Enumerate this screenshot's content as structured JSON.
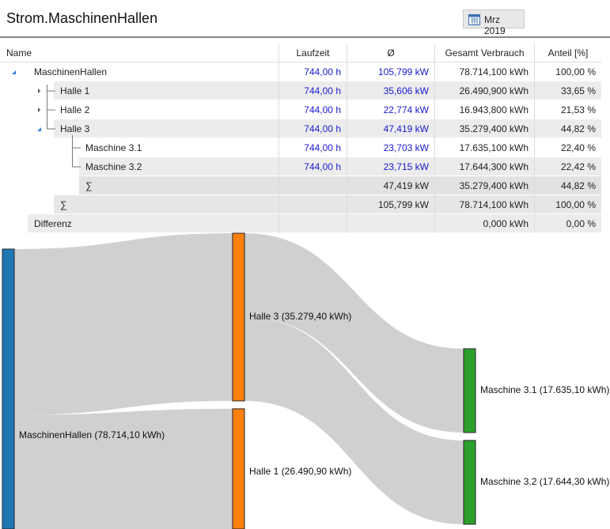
{
  "header": {
    "title": "Strom.MaschinenHallen",
    "period": "Mrz 2019"
  },
  "table": {
    "columns": [
      "Name",
      "Laufzeit",
      "Ø",
      "Gesamt Verbrauch",
      "Anteil [%]"
    ],
    "rows": [
      [
        "MaschinenHallen",
        "744,00 h",
        "105,799 kW",
        "78.714,100 kWh",
        "100,00 %"
      ],
      [
        "Halle 1",
        "744,00 h",
        "35,606 kW",
        "26.490,900 kWh",
        "33,65 %"
      ],
      [
        "Halle 2",
        "744,00 h",
        "22,774 kW",
        "16.943,800 kWh",
        "21,53 %"
      ],
      [
        "Halle 3",
        "744,00 h",
        "47,419 kW",
        "35.279,400 kWh",
        "44,82 %"
      ],
      [
        "Maschine 3.1",
        "744,00 h",
        "23,703 kW",
        "17.635,100 kWh",
        "22,40 %"
      ],
      [
        "Maschine 3.2",
        "744,00 h",
        "23,715 kW",
        "17.644,300 kWh",
        "22,42 %"
      ],
      [
        "∑",
        null,
        "47,419 kW",
        "35.279,400 kWh",
        "44,82 %"
      ],
      [
        "∑",
        null,
        "105,799 kW",
        "78.714,100 kWh",
        "100,00 %"
      ],
      [
        "Differenz",
        null,
        null,
        "0,000 kWh",
        "0,00 %"
      ]
    ]
  },
  "sankey": {
    "nodes": [
      {
        "label": "MaschinenHallen (78.714,10 kWh)"
      },
      {
        "label": "Halle 3 (35.279,40 kWh)"
      },
      {
        "label": "Halle 1 (26.490,90 kWh)"
      },
      {
        "label": "Maschine 3.1 (17.635,10 kWh)"
      },
      {
        "label": "Maschine 3.2 (17.644,30 kWh)"
      }
    ]
  }
}
